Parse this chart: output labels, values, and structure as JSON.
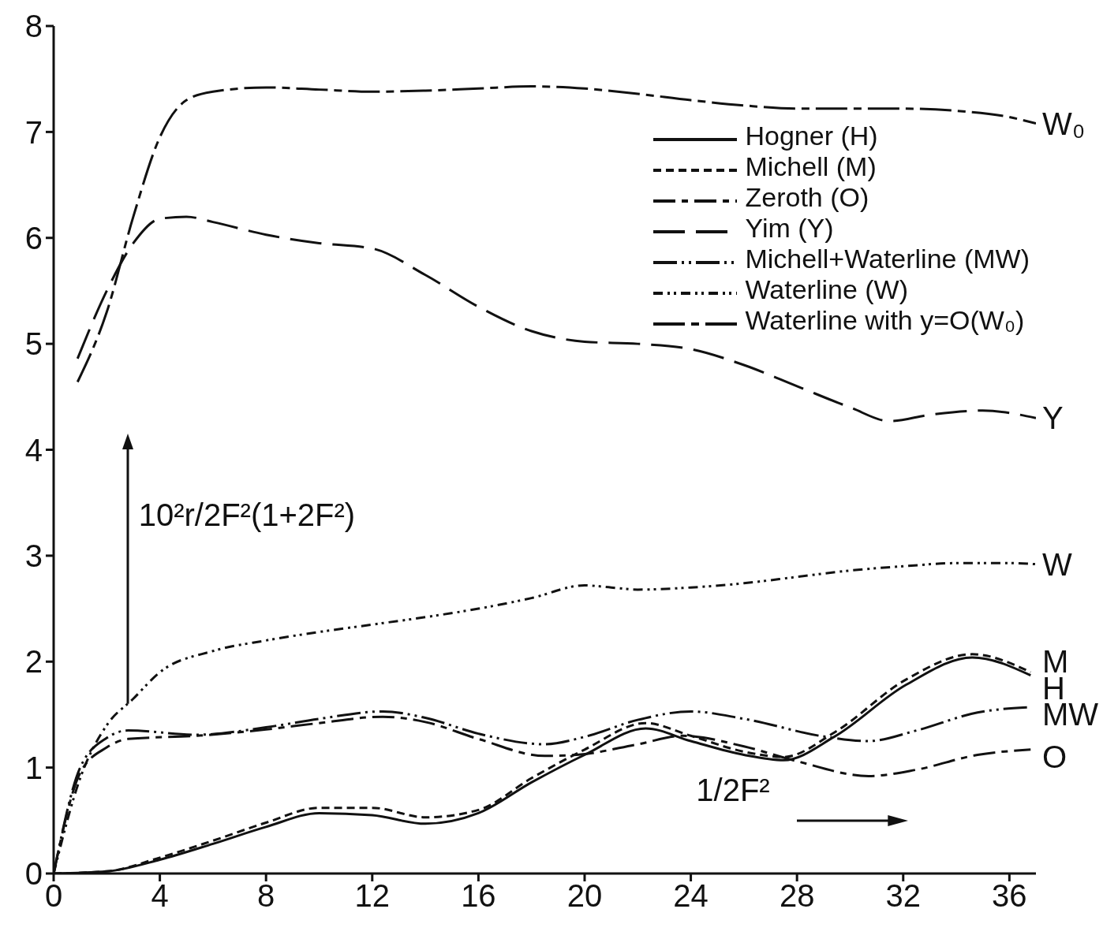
{
  "chart_data": {
    "type": "line",
    "xlabel": "1/2F²",
    "ylabel": "10²r/2F²(1+2F²)",
    "xlim": [
      0,
      37
    ],
    "xticks": [
      0,
      4,
      8,
      12,
      16,
      20,
      24,
      28,
      32,
      36
    ],
    "ylim": [
      0,
      8
    ],
    "yticks": [
      0,
      1,
      2,
      3,
      4,
      5,
      6,
      7,
      8
    ],
    "legend": "top right",
    "marker": "none",
    "series": [
      {
        "name": "Hogner (H)",
        "color": "#111111",
        "line_style": "solid",
        "x": [
          0,
          2,
          4,
          6,
          8,
          10,
          12,
          14,
          16,
          18,
          20,
          22.3,
          24,
          26,
          27.5,
          29.4,
          32.1,
          34.6,
          36.8
        ],
        "values": [
          0,
          0.02,
          0.13,
          0.28,
          0.44,
          0.57,
          0.55,
          0.47,
          0.57,
          0.86,
          1.12,
          1.37,
          1.25,
          1.12,
          1.07,
          1.29,
          1.78,
          2.04,
          1.87
        ]
      },
      {
        "name": "Michell (M)",
        "color": "#111111",
        "line_style": "dashed",
        "x": [
          0,
          2,
          4,
          6,
          8,
          10,
          12,
          14,
          16,
          18,
          20,
          22.3,
          24,
          26,
          27.5,
          29.4,
          32.1,
          34.6,
          36.8
        ],
        "values": [
          0,
          0.02,
          0.15,
          0.31,
          0.48,
          0.62,
          0.62,
          0.53,
          0.6,
          0.9,
          1.17,
          1.42,
          1.3,
          1.15,
          1.1,
          1.33,
          1.83,
          2.07,
          1.9
        ]
      },
      {
        "name": "Zeroth (O)",
        "color": "#111111",
        "line_style": "dashed",
        "x": [
          0,
          1,
          2,
          2.8,
          5.4,
          8,
          10,
          12.4,
          14,
          16,
          18.5,
          19.7,
          22,
          23.7,
          26,
          28,
          30.7,
          32.5,
          34.8,
          36.8
        ],
        "values": [
          0,
          0.95,
          1.19,
          1.27,
          1.3,
          1.36,
          1.42,
          1.48,
          1.43,
          1.27,
          1.11,
          1.12,
          1.22,
          1.3,
          1.2,
          1.06,
          0.92,
          0.98,
          1.12,
          1.17
        ]
      },
      {
        "name": "Yim (Y)",
        "color": "#111111",
        "line_style": "dashed",
        "x": [
          0.9,
          2,
          3,
          4,
          5,
          6,
          8,
          10,
          12,
          14,
          16,
          18,
          20,
          22,
          24,
          26,
          28,
          30,
          31.5,
          33,
          35,
          37
        ],
        "values": [
          4.86,
          5.5,
          5.95,
          6.18,
          6.2,
          6.15,
          6.03,
          5.95,
          5.9,
          5.65,
          5.35,
          5.12,
          5.02,
          5.0,
          4.95,
          4.8,
          4.6,
          4.4,
          4.27,
          4.33,
          4.37,
          4.3
        ]
      },
      {
        "name": "Michell+Waterline (MW)",
        "color": "#111111",
        "line_style": "dotted",
        "x": [
          0,
          1,
          2,
          2.8,
          5.4,
          8,
          10,
          12.4,
          14,
          16,
          18.5,
          20,
          22,
          24,
          26,
          29.1,
          30.7,
          32.5,
          34.8,
          36.8
        ],
        "values": [
          0,
          1.0,
          1.28,
          1.35,
          1.31,
          1.38,
          1.46,
          1.53,
          1.47,
          1.32,
          1.22,
          1.29,
          1.45,
          1.53,
          1.46,
          1.29,
          1.25,
          1.35,
          1.52,
          1.57
        ]
      },
      {
        "name": "Waterline (W)",
        "color": "#111111",
        "line_style": "dotted",
        "x": [
          0,
          1,
          2,
          3,
          4,
          6,
          8,
          10,
          12,
          14,
          16,
          18,
          20,
          21,
          22,
          24,
          26,
          28,
          30,
          32,
          34,
          36,
          37
        ],
        "values": [
          0,
          0.9,
          1.4,
          1.65,
          1.9,
          2.1,
          2.2,
          2.28,
          2.35,
          2.42,
          2.5,
          2.6,
          2.72,
          2.7,
          2.68,
          2.7,
          2.74,
          2.8,
          2.86,
          2.9,
          2.93,
          2.93,
          2.92
        ]
      },
      {
        "name": "Waterline with y=O(W₀)",
        "color": "#111111",
        "line_style": "dashed",
        "x": [
          0.9,
          2,
          3,
          4,
          5,
          6,
          8,
          10,
          12,
          14,
          16,
          18,
          20,
          22,
          24,
          26,
          28,
          30,
          32,
          34,
          36,
          37
        ],
        "values": [
          4.64,
          5.3,
          6.2,
          6.95,
          7.3,
          7.38,
          7.42,
          7.4,
          7.38,
          7.39,
          7.41,
          7.43,
          7.41,
          7.36,
          7.3,
          7.25,
          7.22,
          7.22,
          7.22,
          7.2,
          7.14,
          7.08
        ]
      }
    ],
    "annotations": [
      "W₀",
      "Y",
      "W",
      "M",
      "H",
      "MW",
      "O"
    ]
  }
}
